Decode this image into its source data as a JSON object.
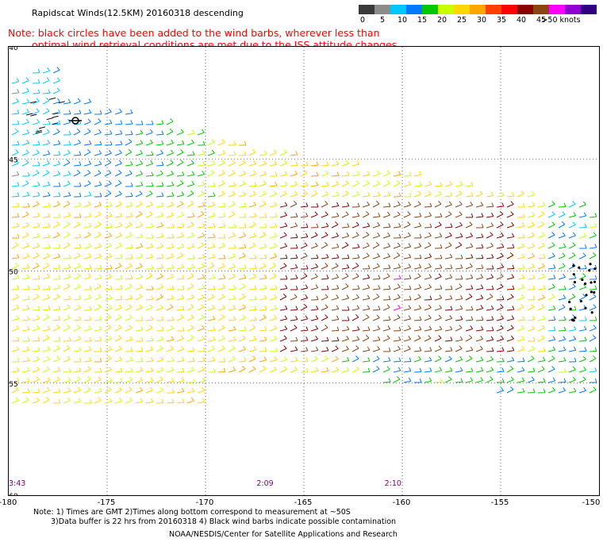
{
  "title": "Rapidscat Winds(12.5KM) 20160318 descending",
  "note_line1": "Note: black circles have been added to the wind barbs, wherever less than",
  "note_line2": "optimal wind retrieval conditions are met due to the ISS attitude changes.",
  "legend": {
    "labels": [
      "0",
      "5",
      "10",
      "15",
      "20",
      "25",
      "30",
      "35",
      "40",
      "45",
      ">50 knots"
    ],
    "colors": [
      "#3a3a3a",
      "#8c8c8c",
      "#00c8ff",
      "#0078ff",
      "#00c800",
      "#c8ff00",
      "#ffd700",
      "#ffa500",
      "#ff4000",
      "#ff0000",
      "#8b0000",
      "#8b4513",
      "#ff00ff",
      "#9000d0",
      "#300080"
    ]
  },
  "axes": {
    "lon_labels": [
      "-180",
      "-175",
      "-170",
      "-165",
      "-160",
      "-155",
      "-150"
    ],
    "lat_labels": [
      "-40",
      "-45",
      "-50",
      "-55",
      "-60"
    ],
    "lon_values": [
      -180,
      -175,
      -170,
      -165,
      -160,
      -155,
      -150
    ],
    "lat_values": [
      -40,
      -45,
      -50,
      -55,
      -60
    ]
  },
  "time_labels": [
    "3:43",
    "2:09",
    "2:10"
  ],
  "footer": {
    "line1": "Note: 1) Times are GMT 2)Times along bottom correspond to measurement at ~50S",
    "line2": "3)Data buffer is 22 hrs from 20160318 4) Black wind barbs indicate possible contamination",
    "line3": "NOAA/NESDIS/Center for Satellite Applications and Research"
  }
}
